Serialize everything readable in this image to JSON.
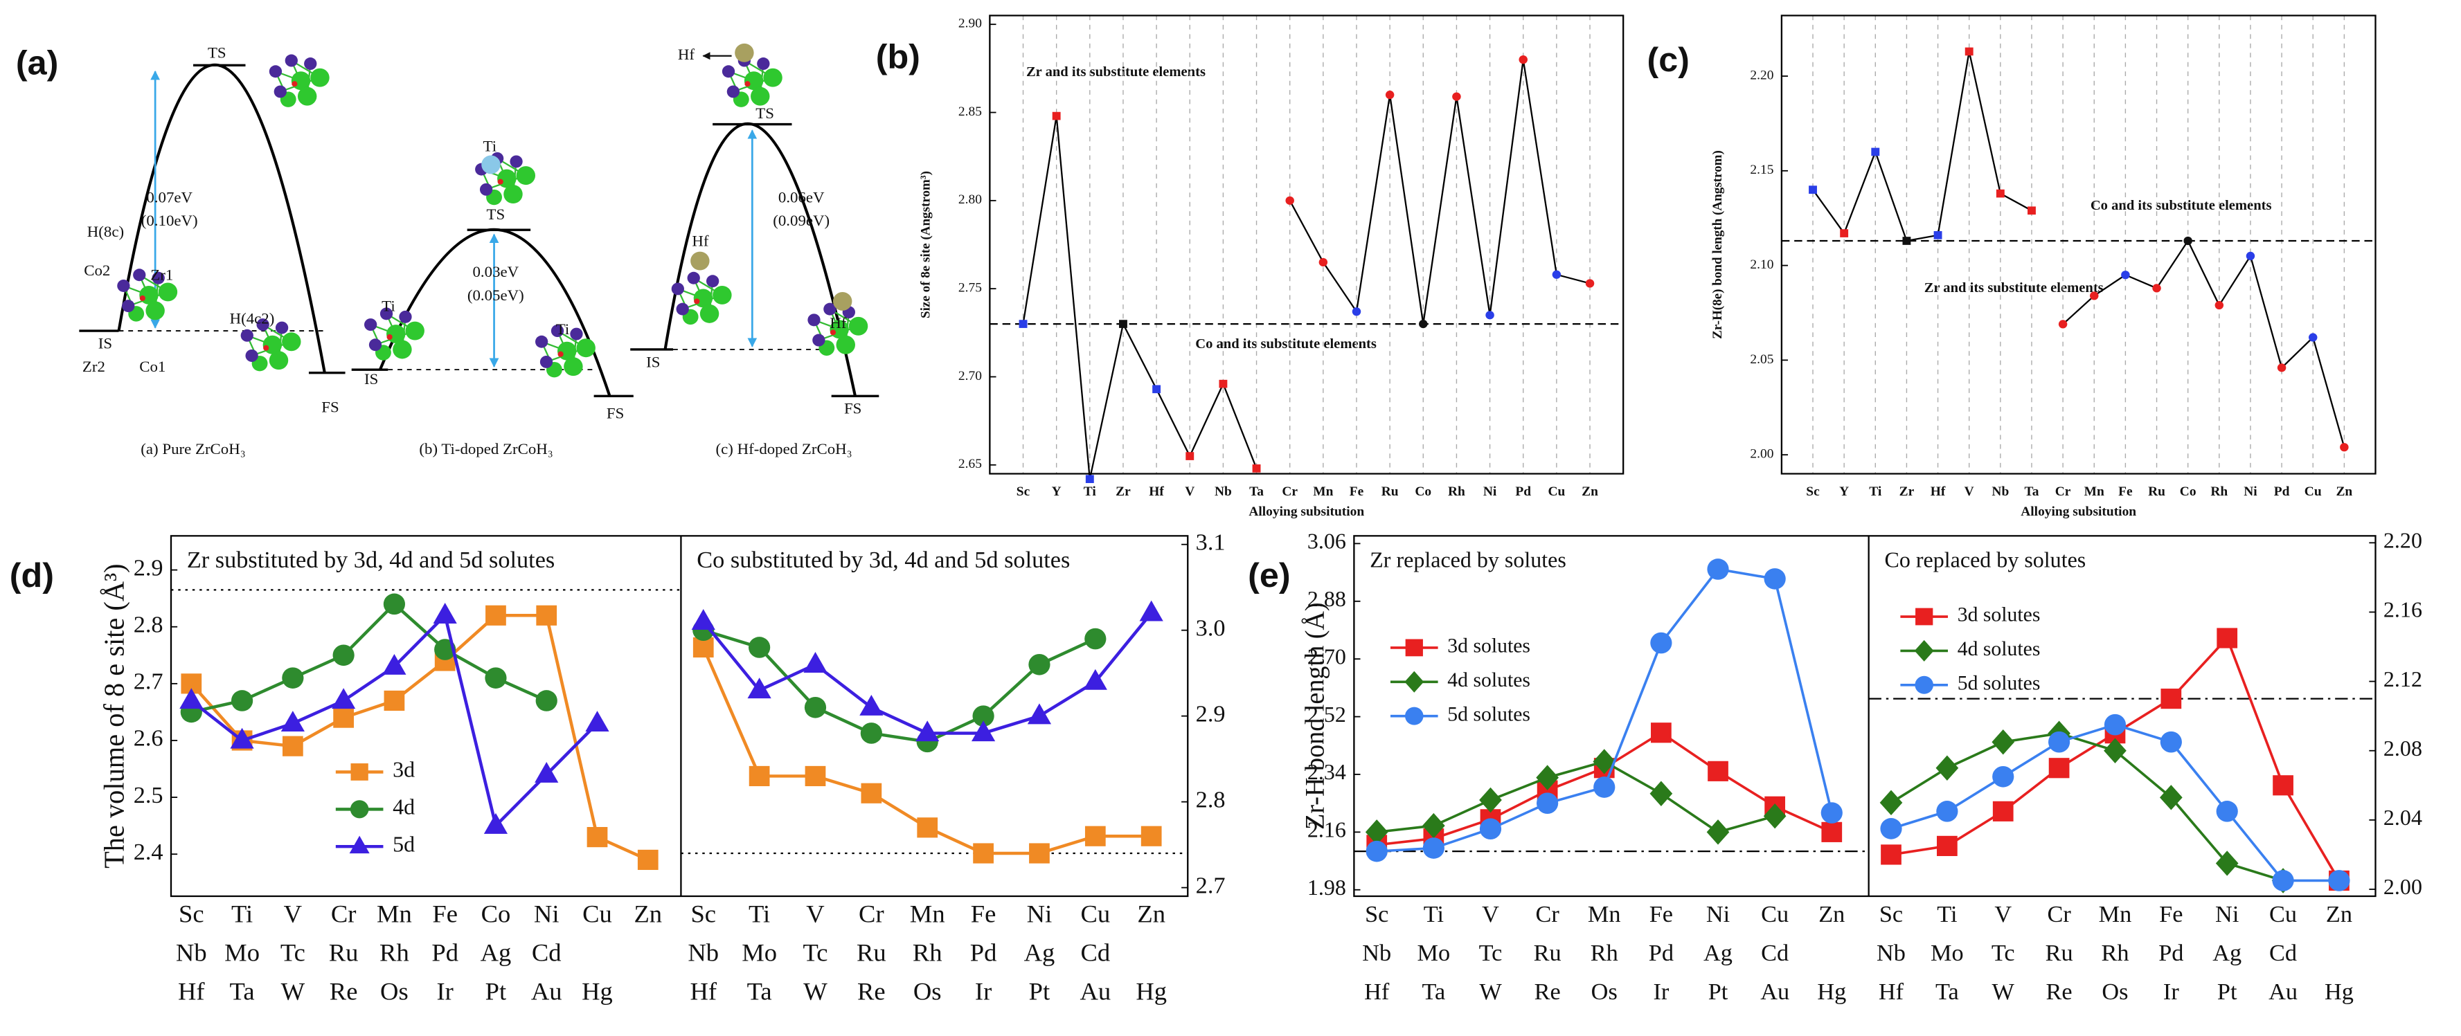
{
  "diagram": {
    "panel_label": "(a)",
    "profiles": [
      {
        "labels": [
          "TS",
          "0.07eV",
          "(0.10eV)",
          "H(8c)",
          "Co2",
          "Zr1",
          "IS",
          "Zr2",
          "Co1",
          "H(4c2)",
          "FS"
        ],
        "caption": "(a) Pure ZrCoH₃"
      },
      {
        "labels": [
          "Ti",
          "TS",
          "0.03eV",
          "(0.05eV)",
          "Ti",
          "Ti",
          "IS",
          "FS"
        ],
        "caption": "(b) Ti-doped ZrCoH₃"
      },
      {
        "labels": [
          "Hf",
          "TS",
          "0.06eV",
          "(0.09eV)",
          "Hf",
          "Hf",
          "IS",
          "FS"
        ],
        "caption": "(c) Hf-doped ZrCoH₃"
      }
    ]
  },
  "chart_data": [
    {
      "type": "line",
      "panel_label": "(b)",
      "ylabel": "Size of 8e site (Angstrom³)",
      "xlabel": "Alloying subsitution",
      "categories": [
        "Sc",
        "Y",
        "Ti",
        "Zr",
        "Hf",
        "V",
        "Nb",
        "Ta",
        "Cr",
        "Mn",
        "Fe",
        "Ru",
        "Co",
        "Rh",
        "Ni",
        "Pd",
        "Cu",
        "Zn"
      ],
      "series": [
        {
          "color": "#000000",
          "marker": "square",
          "values": [
            2.73,
            2.848,
            2.642,
            2.73,
            2.693,
            2.655,
            2.696,
            2.648,
            null,
            null,
            null,
            null,
            null,
            null,
            null,
            null,
            null,
            null
          ],
          "point_colors": [
            "#2a3ee8",
            "#e82020",
            "#2a3ee8",
            "#111111",
            "#2a3ee8",
            "#e82020",
            "#e82020",
            "#e82020",
            null,
            null,
            null,
            null,
            null,
            null,
            null,
            null,
            null,
            null
          ]
        },
        {
          "color": "#000000",
          "marker": "circle",
          "values": [
            null,
            null,
            null,
            null,
            null,
            null,
            null,
            null,
            2.8,
            2.765,
            2.737,
            2.86,
            2.73,
            2.859,
            2.735,
            2.88,
            2.758,
            2.753
          ],
          "point_colors": [
            null,
            null,
            null,
            null,
            null,
            null,
            null,
            null,
            "#e82020",
            "#e82020",
            "#2a3ee8",
            "#e82020",
            "#111111",
            "#e82020",
            "#2a3ee8",
            "#e82020",
            "#2a3ee8",
            "#e82020"
          ]
        }
      ],
      "ylim": [
        2.645,
        2.905
      ],
      "yticks": [
        2.65,
        {
          "value": 2.7,
          "label": "2.70"
        },
        2.75,
        {
          "value": 2.8,
          "label": "2.80"
        },
        2.85,
        {
          "value": 2.9,
          "label": "2.90"
        }
      ],
      "hline": 2.73,
      "hline_style": "dashed",
      "vgrid": true,
      "annotations": [
        "Zr and its substitute elements",
        "Co and its substitute elements"
      ]
    },
    {
      "type": "line",
      "panel_label": "(c)",
      "ylabel": "Zr-H(8e) bond length (Angstrom)",
      "xlabel": "Alloying subsitution",
      "categories": [
        "Sc",
        "Y",
        "Ti",
        "Zr",
        "Hf",
        "V",
        "Nb",
        "Ta",
        "Cr",
        "Mn",
        "Fe",
        "Ru",
        "Co",
        "Rh",
        "Ni",
        "Pd",
        "Cu",
        "Zn"
      ],
      "series": [
        {
          "color": "#000000",
          "marker": "square",
          "values": [
            2.14,
            2.117,
            2.16,
            2.113,
            2.116,
            2.213,
            2.138,
            2.129,
            null,
            null,
            null,
            null,
            null,
            null,
            null,
            null,
            null,
            null
          ],
          "point_colors": [
            "#2a3ee8",
            "#e82020",
            "#2a3ee8",
            "#111111",
            "#2a3ee8",
            "#e82020",
            "#e82020",
            "#e82020",
            null,
            null,
            null,
            null,
            null,
            null,
            null,
            null,
            null,
            null
          ]
        },
        {
          "color": "#000000",
          "marker": "circle",
          "values": [
            null,
            null,
            null,
            null,
            null,
            null,
            null,
            null,
            2.069,
            2.084,
            2.095,
            2.088,
            2.113,
            2.079,
            2.105,
            2.046,
            2.062,
            2.004
          ],
          "point_colors": [
            null,
            null,
            null,
            null,
            null,
            null,
            null,
            null,
            "#e82020",
            "#e82020",
            "#2a3ee8",
            "#e82020",
            "#111111",
            "#e82020",
            "#2a3ee8",
            "#e82020",
            "#2a3ee8",
            "#e82020"
          ]
        }
      ],
      "ylim": [
        1.99,
        2.232
      ],
      "yticks": [
        {
          "value": 2,
          "label": "2.00"
        },
        2.05,
        {
          "value": 2.1,
          "label": "2.10"
        },
        2.15,
        {
          "value": 2.2,
          "label": "2.20"
        }
      ],
      "hline": 2.113,
      "hline_style": "dashed",
      "vgrid": true,
      "annotations": [
        "Co and its substitute elements",
        "Zr and its substitute elements"
      ]
    },
    {
      "type": "line",
      "panel_label": "(d)",
      "ylabel": "The volume of 8 e site (Å³)",
      "panels": [
        {
          "title": "Zr substituted by 3d, 4d and 5d solutes",
          "rows": [
            [
              "Sc",
              "Ti",
              "V",
              "Cr",
              "Mn",
              "Fe",
              "Co",
              "Ni",
              "Cu",
              "Zn"
            ],
            [
              "Nb",
              "Mo",
              "Tc",
              "Ru",
              "Rh",
              "Pd",
              "Ag",
              "Cd"
            ],
            [
              "Hf",
              "Ta",
              "W",
              "Re",
              "Os",
              "Ir",
              "Pt",
              "Au",
              "Hg"
            ]
          ],
          "ylim": [
            2.326,
            2.96
          ],
          "yticks": [
            2.4,
            2.5,
            2.6,
            2.7,
            2.8,
            2.9
          ],
          "tick_side": "left",
          "hline": 2.865,
          "hline_style": "dotted",
          "series": [
            {
              "name": "3d",
              "color": "#f08a24",
              "marker": "square",
              "values": [
                2.7,
                2.6,
                2.59,
                2.64,
                2.67,
                2.74,
                2.82,
                2.82,
                2.43,
                2.39
              ]
            },
            {
              "name": "4d",
              "color": "#2e8b2e",
              "marker": "circle",
              "values": [
                2.65,
                2.67,
                2.71,
                2.75,
                2.84,
                2.76,
                2.71,
                2.67
              ]
            },
            {
              "name": "5d",
              "color": "#3c1fe0",
              "marker": "triangle",
              "values": [
                2.67,
                2.6,
                2.63,
                2.67,
                2.73,
                2.82,
                2.45,
                2.54,
                2.63
              ]
            }
          ]
        },
        {
          "title": "Co substituted by 3d, 4d and 5d solutes",
          "rows": [
            [
              "Sc",
              "Ti",
              "V",
              "Cr",
              "Mn",
              "Fe",
              "Ni",
              "Cu",
              "Zn"
            ],
            [
              "Nb",
              "Mo",
              "Tc",
              "Ru",
              "Rh",
              "Pd",
              "Ag",
              "Cd"
            ],
            [
              "Hf",
              "Ta",
              "W",
              "Re",
              "Os",
              "Ir",
              "Pt",
              "Au",
              "Hg"
            ]
          ],
          "ylim": [
            2.69,
            3.11
          ],
          "yticks": [
            2.7,
            2.8,
            2.9,
            {
              "value": 3,
              "label": "3.0"
            },
            3.1
          ],
          "tick_side": "right",
          "hline": 2.74,
          "hline_style": "dotted",
          "series": [
            {
              "color": "#f08a24",
              "marker": "square",
              "values": [
                2.98,
                2.83,
                2.83,
                2.81,
                2.77,
                2.74,
                2.74,
                2.76,
                2.76
              ]
            },
            {
              "color": "#2e8b2e",
              "marker": "circle",
              "values": [
                3,
                2.98,
                2.91,
                2.88,
                2.87,
                2.9,
                2.96,
                2.99
              ]
            },
            {
              "color": "#3c1fe0",
              "marker": "triangle",
              "values": [
                3.01,
                2.93,
                2.96,
                2.91,
                2.88,
                2.88,
                2.9,
                2.94,
                3.02
              ]
            }
          ]
        }
      ]
    },
    {
      "type": "line",
      "panel_label": "(e)",
      "ylabel": "Zr-H  bond length (Å)",
      "panels": [
        {
          "title": "Zr replaced by solutes",
          "rows": [
            [
              "Sc",
              "Ti",
              "V",
              "Cr",
              "Mn",
              "Fe",
              "Ni",
              "Cu",
              "Zn"
            ],
            [
              "Nb",
              "Mo",
              "Tc",
              "Ru",
              "Rh",
              "Pd",
              "Ag",
              "Cd"
            ],
            [
              "Hf",
              "Ta",
              "W",
              "Re",
              "Os",
              "Ir",
              "Pt",
              "Au",
              "Hg"
            ]
          ],
          "ylim": [
            1.96,
            3.084
          ],
          "yticks": [
            1.98,
            2.16,
            2.34,
            2.52,
            {
              "value": 2.7,
              "label": "2.70"
            },
            2.88,
            3.06
          ],
          "tick_side": "left",
          "hline": 2.1,
          "hline_style": "dashdot",
          "series": [
            {
              "name": "3d solutes",
              "color": "#e82020",
              "marker": "square",
              "values": [
                2.12,
                2.14,
                2.2,
                2.29,
                2.36,
                2.47,
                2.35,
                2.24,
                2.16
              ]
            },
            {
              "name": "4d solutes",
              "color": "#2a7a1a",
              "marker": "diamond",
              "values": [
                2.16,
                2.18,
                2.26,
                2.33,
                2.38,
                2.28,
                2.16,
                2.21
              ]
            },
            {
              "name": "5d solutes",
              "color": "#3a80f0",
              "marker": "circle",
              "values": [
                2.1,
                2.11,
                2.17,
                2.25,
                2.3,
                2.75,
                2.98,
                2.95,
                2.22
              ]
            }
          ]
        },
        {
          "title": "Co replaced by solutes",
          "rows": [
            [
              "Sc",
              "Ti",
              "V",
              "Cr",
              "Mn",
              "Fe",
              "Ni",
              "Cu",
              "Zn"
            ],
            [
              "Nb",
              "Mo",
              "Tc",
              "Ru",
              "Rh",
              "Pd",
              "Ag",
              "Cd"
            ],
            [
              "Hf",
              "Ta",
              "W",
              "Re",
              "Os",
              "Ir",
              "Pt",
              "Au",
              "Hg"
            ]
          ],
          "ylim": [
            1.996,
            2.204
          ],
          "yticks": [
            {
              "value": 2,
              "label": "2.00"
            },
            2.04,
            2.08,
            2.12,
            2.16,
            {
              "value": 2.2,
              "label": "2.20"
            }
          ],
          "tick_side": "right",
          "hline": 2.11,
          "hline_style": "dashdot",
          "series": [
            {
              "name": "3d solutes",
              "color": "#e82020",
              "marker": "square",
              "values": [
                2.02,
                2.025,
                2.045,
                2.07,
                2.09,
                2.11,
                2.145,
                2.06,
                2.005
              ]
            },
            {
              "name": "4d solutes",
              "color": "#2a7a1a",
              "marker": "diamond",
              "values": [
                2.05,
                2.07,
                2.085,
                2.09,
                2.08,
                2.053,
                2.015,
                2.005
              ]
            },
            {
              "name": "5d solutes",
              "color": "#3a80f0",
              "marker": "circle",
              "values": [
                2.035,
                2.045,
                2.065,
                2.085,
                2.095,
                2.085,
                2.045,
                2.005,
                2.005
              ]
            }
          ]
        }
      ]
    }
  ]
}
